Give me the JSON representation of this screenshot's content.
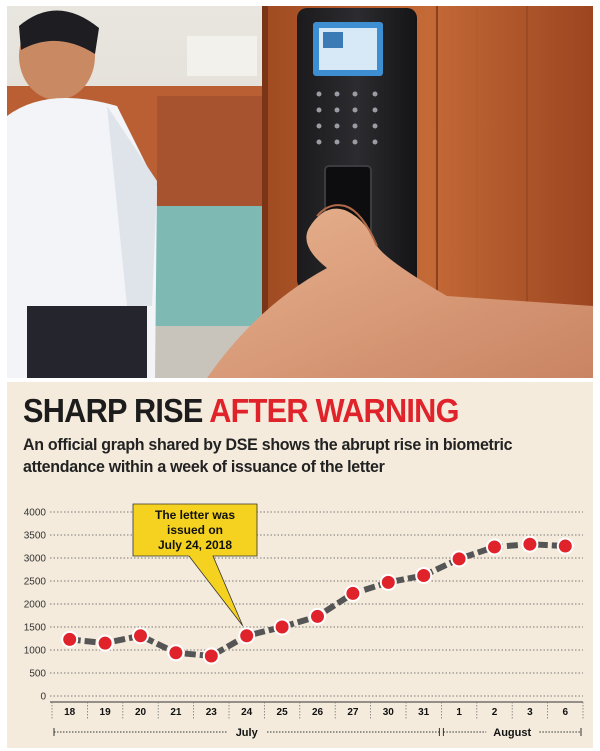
{
  "headline": {
    "part1": "SHARP RISE ",
    "part2": "AFTER WARNING"
  },
  "subheading": "An official graph shared by DSE shows the abrupt rise in biometric attendance within a week of issuance of the letter",
  "photo": {
    "description_icon": "biometric-device-photo"
  },
  "colors": {
    "headline_dark": "#1c1c1c",
    "headline_red": "#e0232b",
    "marker": "#e0232b",
    "line": "#555555",
    "callout_fill": "#f5d21f",
    "panel_bg": "#f4ebdc"
  },
  "chart_data": {
    "type": "line",
    "categories": [
      "18",
      "19",
      "20",
      "21",
      "23",
      "24",
      "25",
      "26",
      "27",
      "30",
      "31",
      "1",
      "2",
      "3",
      "6"
    ],
    "series": [
      {
        "values": [
          1230,
          1150,
          1310,
          940,
          870,
          1310,
          1500,
          1730,
          2230,
          2470,
          2620,
          2980,
          3240,
          3300,
          3260
        ]
      }
    ],
    "y_ticks": [
      "4000",
      "3500",
      "3000",
      "2500",
      "2000",
      "1500",
      "1000",
      "500",
      "0"
    ],
    "ylim": [
      0,
      4000
    ],
    "grid": "horizontal-dashed",
    "months": [
      {
        "label": "July",
        "from": 0,
        "to": 10
      },
      {
        "label": "August",
        "from": 11,
        "to": 14
      }
    ],
    "annotation": {
      "lines": [
        "The letter was",
        "issued on",
        "July 24, 2018"
      ],
      "point_index": 5
    }
  }
}
